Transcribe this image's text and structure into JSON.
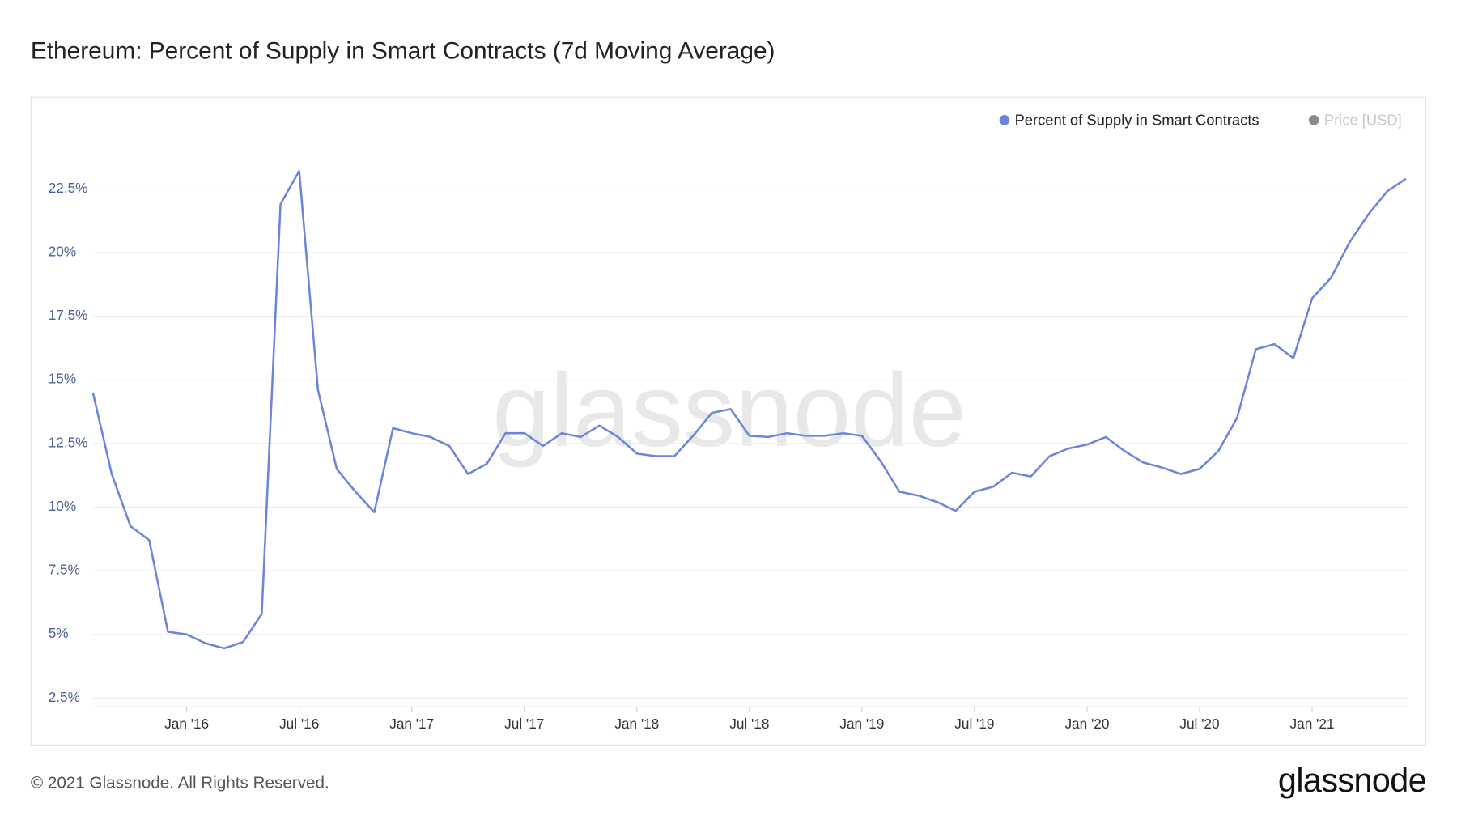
{
  "chart_data": {
    "type": "line",
    "title": "Ethereum: Percent of Supply in Smart Contracts (7d Moving Average)",
    "x": [
      "2015-08",
      "2015-09",
      "2015-10",
      "2015-11",
      "2015-12",
      "2016-01",
      "2016-02",
      "2016-03",
      "2016-04",
      "2016-05",
      "2016-06",
      "2016-07",
      "2016-08",
      "2016-09",
      "2016-10",
      "2016-11",
      "2016-12",
      "2017-01",
      "2017-02",
      "2017-03",
      "2017-04",
      "2017-05",
      "2017-06",
      "2017-07",
      "2017-08",
      "2017-09",
      "2017-10",
      "2017-11",
      "2017-12",
      "2018-01",
      "2018-02",
      "2018-03",
      "2018-04",
      "2018-05",
      "2018-06",
      "2018-07",
      "2018-08",
      "2018-09",
      "2018-10",
      "2018-11",
      "2018-12",
      "2019-01",
      "2019-02",
      "2019-03",
      "2019-04",
      "2019-05",
      "2019-06",
      "2019-07",
      "2019-08",
      "2019-09",
      "2019-10",
      "2019-11",
      "2019-12",
      "2020-01",
      "2020-02",
      "2020-03",
      "2020-04",
      "2020-05",
      "2020-06",
      "2020-07",
      "2020-08",
      "2020-09",
      "2020-10",
      "2020-11",
      "2020-12",
      "2021-01",
      "2021-02",
      "2021-03",
      "2021-04",
      "2021-05",
      "2021-06"
    ],
    "series": [
      {
        "name": "Percent of Supply in Smart Contracts",
        "color": "#6b84dc",
        "values": [
          14.5,
          11.3,
          9.25,
          8.7,
          5.1,
          5.0,
          4.65,
          4.45,
          4.7,
          5.8,
          21.9,
          23.2,
          14.6,
          11.5,
          10.6,
          9.8,
          13.1,
          12.9,
          12.75,
          12.4,
          11.3,
          11.7,
          12.9,
          12.9,
          12.4,
          12.9,
          12.75,
          13.2,
          12.75,
          12.1,
          12.0,
          12.0,
          12.8,
          13.7,
          13.85,
          12.8,
          12.75,
          12.9,
          12.8,
          12.8,
          12.9,
          12.8,
          11.8,
          10.6,
          10.45,
          10.2,
          9.85,
          10.6,
          10.8,
          11.35,
          11.2,
          12.0,
          12.3,
          12.45,
          12.75,
          12.2,
          11.75,
          11.55,
          11.3,
          11.5,
          12.2,
          13.5,
          16.2,
          16.4,
          15.85,
          18.2,
          19.0,
          20.4,
          21.5,
          22.4,
          22.9
        ]
      }
    ],
    "inactive_legend": {
      "name": "Price [USD]",
      "color": "#8a8a8a"
    },
    "xlim": [
      "2015-08",
      "2021-06"
    ],
    "xticks": [
      {
        "value": "2016-01",
        "label": "Jan '16"
      },
      {
        "value": "2016-07",
        "label": "Jul '16"
      },
      {
        "value": "2017-01",
        "label": "Jan '17"
      },
      {
        "value": "2017-07",
        "label": "Jul '17"
      },
      {
        "value": "2018-01",
        "label": "Jan '18"
      },
      {
        "value": "2018-07",
        "label": "Jul '18"
      },
      {
        "value": "2019-01",
        "label": "Jan '19"
      },
      {
        "value": "2019-07",
        "label": "Jul '19"
      },
      {
        "value": "2020-01",
        "label": "Jan '20"
      },
      {
        "value": "2020-07",
        "label": "Jul '20"
      },
      {
        "value": "2021-01",
        "label": "Jan '21"
      }
    ],
    "ylim": [
      2.17,
      24.69
    ],
    "yticks": [
      {
        "value": 2.5,
        "label": "2.5%"
      },
      {
        "value": 5,
        "label": "5%"
      },
      {
        "value": 7.5,
        "label": "7.5%"
      },
      {
        "value": 10,
        "label": "10%"
      },
      {
        "value": 12.5,
        "label": "12.5%"
      },
      {
        "value": 15,
        "label": "15%"
      },
      {
        "value": 17.5,
        "label": "17.5%"
      },
      {
        "value": 20,
        "label": "20%"
      },
      {
        "value": 22.5,
        "label": "22.5%"
      }
    ],
    "grid": true,
    "watermark": "glassnode",
    "footer": "© 2021 Glassnode. All Rights Reserved.",
    "logo": "glassnode"
  }
}
